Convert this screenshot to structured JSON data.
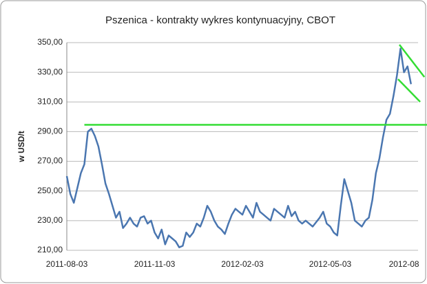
{
  "chart_data": {
    "type": "line",
    "title": "Pszenica - kontrakty wykres kontynuacyjny, CBOT",
    "y_label": "w USD/t",
    "categories": [
      "2011-08-03",
      null,
      null,
      null,
      null,
      null,
      null,
      null,
      null,
      null,
      null,
      null,
      null,
      null,
      null,
      null,
      null,
      null,
      null,
      null,
      null,
      null,
      null,
      null,
      null,
      "2011-11-03",
      null,
      null,
      null,
      null,
      null,
      null,
      null,
      null,
      null,
      null,
      null,
      null,
      null,
      null,
      null,
      null,
      null,
      null,
      null,
      null,
      null,
      null,
      null,
      null,
      "2012-02-03",
      null,
      null,
      null,
      null,
      null,
      null,
      null,
      null,
      null,
      null,
      null,
      null,
      null,
      null,
      null,
      null,
      null,
      null,
      null,
      null,
      null,
      null,
      null,
      null,
      "2012-05-03",
      null,
      null,
      null,
      null,
      null,
      null,
      null,
      null,
      null,
      null,
      null,
      null,
      null,
      null,
      null,
      null,
      null,
      null,
      null,
      null,
      "2012-08",
      null,
      null,
      null,
      null
    ],
    "series": [
      {
        "color": "#4a76b0",
        "values": [
          260,
          248,
          242,
          252,
          262,
          268,
          290,
          292,
          287,
          280,
          268,
          255,
          248,
          240,
          232,
          236,
          225,
          228,
          232,
          228,
          226,
          232,
          233,
          228,
          230,
          222,
          218,
          224,
          214,
          220,
          218,
          216,
          212,
          213,
          222,
          219,
          222,
          228,
          226,
          232,
          240,
          236,
          230,
          226,
          224,
          221,
          228,
          234,
          238,
          236,
          234,
          240,
          236,
          232,
          242,
          236,
          234,
          232,
          230,
          238,
          236,
          234,
          232,
          240,
          233,
          236,
          230,
          228,
          230,
          228,
          226,
          229,
          232,
          236,
          228,
          226,
          222,
          220,
          240,
          258,
          250,
          242,
          230,
          228,
          226,
          230,
          232,
          244,
          262,
          272,
          286,
          298,
          302,
          314,
          328,
          346,
          330,
          334,
          322,
          null,
          null
        ]
      }
    ],
    "trendlines": [
      {
        "color": "#33dd33",
        "x": [
          5,
          103
        ],
        "y": [
          294.6,
          294.6
        ]
      },
      {
        "color": "#33dd33",
        "x": [
          94.7,
          101.8
        ],
        "y": [
          348.6,
          326.8
        ]
      },
      {
        "color": "#33dd33",
        "x": [
          94.3,
          100.6
        ],
        "y": [
          325.4,
          310.1
        ]
      }
    ],
    "ylim": [
      210,
      350
    ],
    "yticks": [
      {
        "value": 210,
        "label": "210,00"
      },
      {
        "value": 230,
        "label": "230,00"
      },
      {
        "value": 250,
        "label": "250,00"
      },
      {
        "value": 270,
        "label": "270,00"
      },
      {
        "value": 290,
        "label": "290,00"
      },
      {
        "value": 310,
        "label": "310,00"
      },
      {
        "value": 330,
        "label": "330,00"
      },
      {
        "value": 350,
        "label": "350,00"
      }
    ],
    "grid": true
  }
}
